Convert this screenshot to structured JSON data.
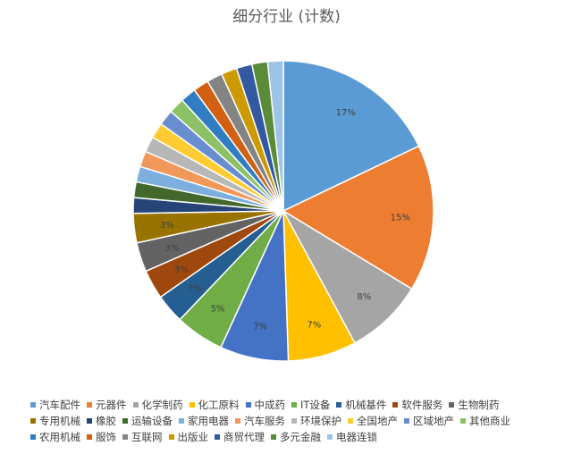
{
  "chart_data": {
    "type": "pie",
    "title": "细分行业 (计数)",
    "legend_position": "bottom",
    "series": [
      {
        "name": "汽车配件",
        "value": 17,
        "label": "17%",
        "color": "#5B9BD5"
      },
      {
        "name": "元器件",
        "value": 15,
        "label": "15%",
        "color": "#ED7D31"
      },
      {
        "name": "化学制药",
        "value": 8,
        "label": "8%",
        "color": "#A5A5A5"
      },
      {
        "name": "化工原料",
        "value": 7,
        "label": "7%",
        "color": "#FFC000"
      },
      {
        "name": "中成药",
        "value": 7,
        "label": "7%",
        "color": "#4472C4"
      },
      {
        "name": "IT设备",
        "value": 5,
        "label": "5%",
        "color": "#70AD47"
      },
      {
        "name": "机械基件",
        "value": 3,
        "label": "3%",
        "color": "#255E91"
      },
      {
        "name": "软件服务",
        "value": 3,
        "label": "3%",
        "color": "#9E480E"
      },
      {
        "name": "生物制药",
        "value": 3,
        "label": "3%",
        "color": "#636363"
      },
      {
        "name": "专用机械",
        "value": 3,
        "label": "3%",
        "color": "#997300"
      },
      {
        "name": "橡胶",
        "value": 1.6,
        "label": "",
        "color": "#264478"
      },
      {
        "name": "运输设备",
        "value": 1.6,
        "label": "",
        "color": "#43682B"
      },
      {
        "name": "家用电器",
        "value": 1.6,
        "label": "",
        "color": "#7CAFDD"
      },
      {
        "name": "汽车服务",
        "value": 1.6,
        "label": "",
        "color": "#F1975A"
      },
      {
        "name": "环境保护",
        "value": 1.6,
        "label": "",
        "color": "#B7B7B7"
      },
      {
        "name": "全国地产",
        "value": 1.6,
        "label": "",
        "color": "#FFCD33"
      },
      {
        "name": "区域地产",
        "value": 1.6,
        "label": "",
        "color": "#698ED0"
      },
      {
        "name": "其他商业",
        "value": 1.6,
        "label": "",
        "color": "#8CC168"
      },
      {
        "name": "农用机械",
        "value": 1.6,
        "label": "",
        "color": "#327DC2"
      },
      {
        "name": "服饰",
        "value": 1.6,
        "label": "",
        "color": "#D26012"
      },
      {
        "name": "互联网",
        "value": 1.6,
        "label": "",
        "color": "#848484"
      },
      {
        "name": "出版业",
        "value": 1.6,
        "label": "",
        "color": "#CC9A00"
      },
      {
        "name": "商贸代理",
        "value": 1.6,
        "label": "",
        "color": "#335AA1"
      },
      {
        "name": "多元金融",
        "value": 1.6,
        "label": "",
        "color": "#5A8B39"
      },
      {
        "name": "电器连锁",
        "value": 1.6,
        "label": "",
        "color": "#9DC3E6"
      }
    ]
  }
}
